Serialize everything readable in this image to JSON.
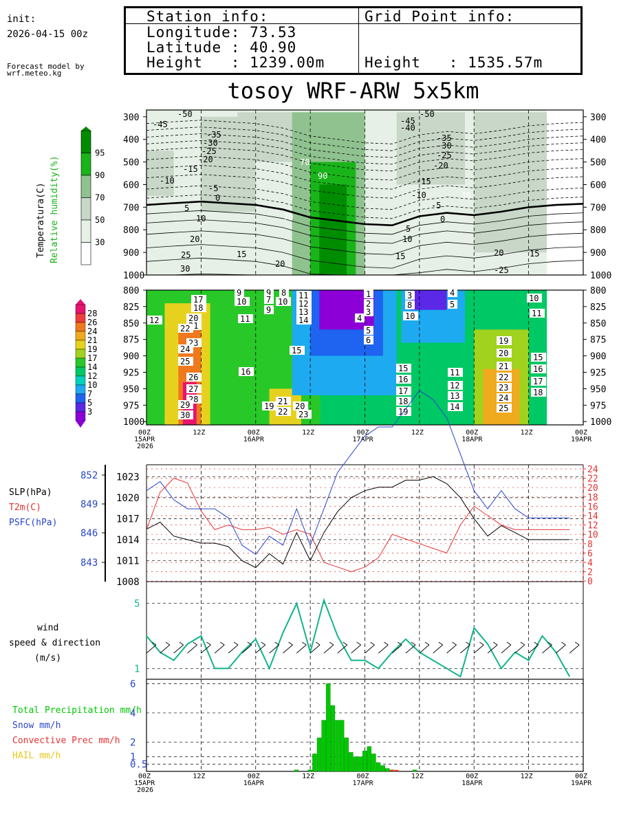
{
  "header": {
    "init_label": "init:",
    "init_value": "2026-04-15 00z",
    "credit_line1": "Forecast model by",
    "credit_line2": "wrf.meteo.kg"
  },
  "station": {
    "heading": "Station info:",
    "longitude": "Longitude: 73.53",
    "latitude": "Latitude : 40.90",
    "height": "Height   : 1239.00m"
  },
  "gridpoint": {
    "heading": "Grid Point info:",
    "height": "Height   : 1535.57m"
  },
  "title": "tosoy WRF-ARW 5x5km",
  "time_axis": {
    "ticks": [
      "00Z",
      "12Z",
      "00Z",
      "12Z",
      "00Z",
      "12Z",
      "00Z",
      "12Z",
      "00Z"
    ],
    "dates": [
      "15APR",
      "",
      "16APR",
      "",
      "17APR",
      "",
      "18APR",
      "",
      "19APR"
    ],
    "year": "2026"
  },
  "colors": {
    "rh_scale": [
      "#ffffff",
      "#e6f0e6",
      "#c8d7c8",
      "#8fc28f",
      "#19b419",
      "#008c00"
    ],
    "temp_scale": [
      "#8c00d7",
      "#5a28e6",
      "#1e64f0",
      "#1eaaf0",
      "#00d2be",
      "#00c864",
      "#28c828",
      "#a0d21e",
      "#e6d21e",
      "#f0aa1e",
      "#f0781e",
      "#f03c3c",
      "#e6146e"
    ],
    "slp": "#000000",
    "t2m": "#e63232",
    "psfc": "#2846c8",
    "wind": "#10b48c",
    "precip": "#00c800",
    "snow": "#2846c8",
    "conv": "#e63232",
    "hail": "#e6c81e"
  },
  "chart_data": [
    {
      "type": "heatmap",
      "name_desc": "cross-section",
      "ylabel_temp": "Temperatura(C)",
      "ylabel_rh": "Relative humidity(%)",
      "y_ticks": [
        "300",
        "400",
        "500",
        "600",
        "700",
        "800",
        "900",
        "1000"
      ],
      "y_values": [
        300,
        400,
        500,
        600,
        700,
        800,
        900,
        1000
      ],
      "rh_legend": [
        "95",
        "90",
        "70",
        "50",
        "30"
      ],
      "isotherm_labels": [
        "-50",
        "-45",
        "-40",
        "-35",
        "-30",
        "-25",
        "-20",
        "-15",
        "-10",
        "-5",
        "0",
        "5",
        "10",
        "15",
        "20",
        "25",
        "30"
      ],
      "zero_isotherm": [
        [
          0,
          690
        ],
        [
          6,
          682
        ],
        [
          12,
          675
        ],
        [
          24,
          690
        ],
        [
          30,
          710
        ],
        [
          36,
          745
        ],
        [
          42,
          760
        ],
        [
          48,
          775
        ],
        [
          54,
          780
        ],
        [
          60,
          740
        ],
        [
          66,
          725
        ],
        [
          72,
          735
        ],
        [
          78,
          720
        ],
        [
          84,
          700
        ],
        [
          90,
          690
        ],
        [
          96,
          685
        ]
      ],
      "rh_labels": [
        "70",
        "90",
        "70",
        "30"
      ]
    },
    {
      "type": "heatmap",
      "name_desc": "low-level temperature",
      "y_ticks": [
        "800",
        "825",
        "850",
        "875",
        "900",
        "925",
        "950",
        "975",
        "1000"
      ],
      "y_values": [
        800,
        825,
        850,
        875,
        900,
        925,
        950,
        975,
        1000
      ],
      "legend": [
        "28",
        "26",
        "24",
        "21",
        "19",
        "17",
        "14",
        "12",
        "10",
        "7",
        "5",
        "3"
      ],
      "labels": [
        "12",
        "13",
        "15",
        "17",
        "18",
        "20",
        "21",
        "22",
        "23",
        "24",
        "25",
        "26",
        "27",
        "28",
        "29",
        "30",
        "9",
        "10",
        "11",
        "16",
        "19",
        "14",
        "1",
        "2",
        "3",
        "4",
        "5",
        "6"
      ]
    },
    {
      "type": "line",
      "name_desc": "surface",
      "labels": {
        "slp": "SLP(hPa)",
        "t2m": "T2m(C)",
        "psfc": "PSFC(hPa)"
      },
      "slp_axis": [
        "1023",
        "1020",
        "1017",
        "1014",
        "1011",
        "1008"
      ],
      "psfc_axis": [
        "852",
        "849",
        "846",
        "843"
      ],
      "t2m_axis": [
        "24",
        "22",
        "20",
        "18",
        "16",
        "14",
        "12",
        "10",
        "8",
        "6",
        "4",
        "2",
        "0"
      ],
      "x_hours": [
        0,
        3,
        6,
        9,
        12,
        15,
        18,
        21,
        24,
        27,
        30,
        33,
        36,
        39,
        42,
        45,
        48,
        51,
        54,
        57,
        60,
        63,
        66,
        69,
        72,
        75,
        78,
        81,
        84,
        87,
        90,
        93
      ],
      "slp": [
        1015.5,
        1016.5,
        1014.5,
        1014,
        1013.5,
        1013.5,
        1013,
        1011,
        1010,
        1012,
        1010.5,
        1015,
        1011,
        1015,
        1018,
        1020,
        1021,
        1021.5,
        1021.5,
        1022.5,
        1022.5,
        1023,
        1022,
        1020,
        1017,
        1014.5,
        1016,
        1015,
        1014,
        1014,
        1014,
        1014
      ],
      "psfc": [
        846,
        846.5,
        845.5,
        845,
        845,
        845,
        844.5,
        843,
        842.5,
        843.5,
        843,
        845,
        843,
        845,
        847,
        848,
        849,
        849.5,
        849.5,
        850.5,
        851.5,
        851,
        850,
        848,
        846,
        845,
        846,
        845,
        844.5,
        844.5,
        844.5,
        844.5
      ],
      "t2m": [
        11,
        19,
        22,
        21,
        15,
        11,
        12,
        11,
        11,
        11.5,
        10,
        11,
        10,
        4,
        3,
        2,
        3,
        5,
        10,
        9,
        8,
        7,
        6,
        12,
        16,
        14,
        12,
        11,
        11,
        11,
        11,
        11
      ]
    },
    {
      "type": "line",
      "name_desc": "wind",
      "labels": {
        "l1": "wind",
        "l2": "speed & direction",
        "l3": "(m/s)"
      },
      "y_ticks": [
        "5",
        "1"
      ],
      "x_hours": [
        0,
        3,
        6,
        9,
        12,
        15,
        18,
        21,
        24,
        27,
        30,
        33,
        36,
        39,
        42,
        45,
        48,
        51,
        54,
        57,
        60,
        63,
        66,
        69,
        72,
        75,
        78,
        81,
        84,
        87,
        90,
        93
      ],
      "speed": [
        3,
        2,
        1.5,
        2.5,
        3,
        1,
        1,
        2,
        2.8,
        1,
        3.2,
        5,
        2,
        5.2,
        3,
        1.5,
        1.5,
        1,
        2,
        2.8,
        2,
        1.5,
        1,
        0.5,
        3.5,
        2.5,
        1,
        2,
        1.5,
        3,
        2,
        0.5
      ]
    },
    {
      "type": "bar",
      "name_desc": "precipitation",
      "labels": {
        "total": "Total Precipitation mm/h",
        "snow": "Snow mm/h",
        "conv": "Convective Prec mm/h",
        "hail": "HAIL mm/h"
      },
      "y_ticks": [
        "6",
        "4",
        "2",
        "1",
        "0.5"
      ],
      "hours": [
        33,
        36,
        37,
        38,
        39,
        40,
        41,
        42,
        43,
        44,
        45,
        46,
        47,
        48,
        49,
        50,
        51,
        52,
        53,
        54,
        59
      ],
      "values": [
        0.1,
        0.1,
        1.2,
        2.3,
        3.5,
        6,
        4.5,
        3.5,
        3.5,
        2.3,
        1.3,
        1,
        1,
        1.4,
        1.7,
        1.2,
        0.6,
        0.4,
        0.2,
        0.1,
        0.1
      ],
      "conv_hours": [
        54,
        55
      ],
      "conv_values": [
        0.1,
        0.1
      ]
    }
  ]
}
